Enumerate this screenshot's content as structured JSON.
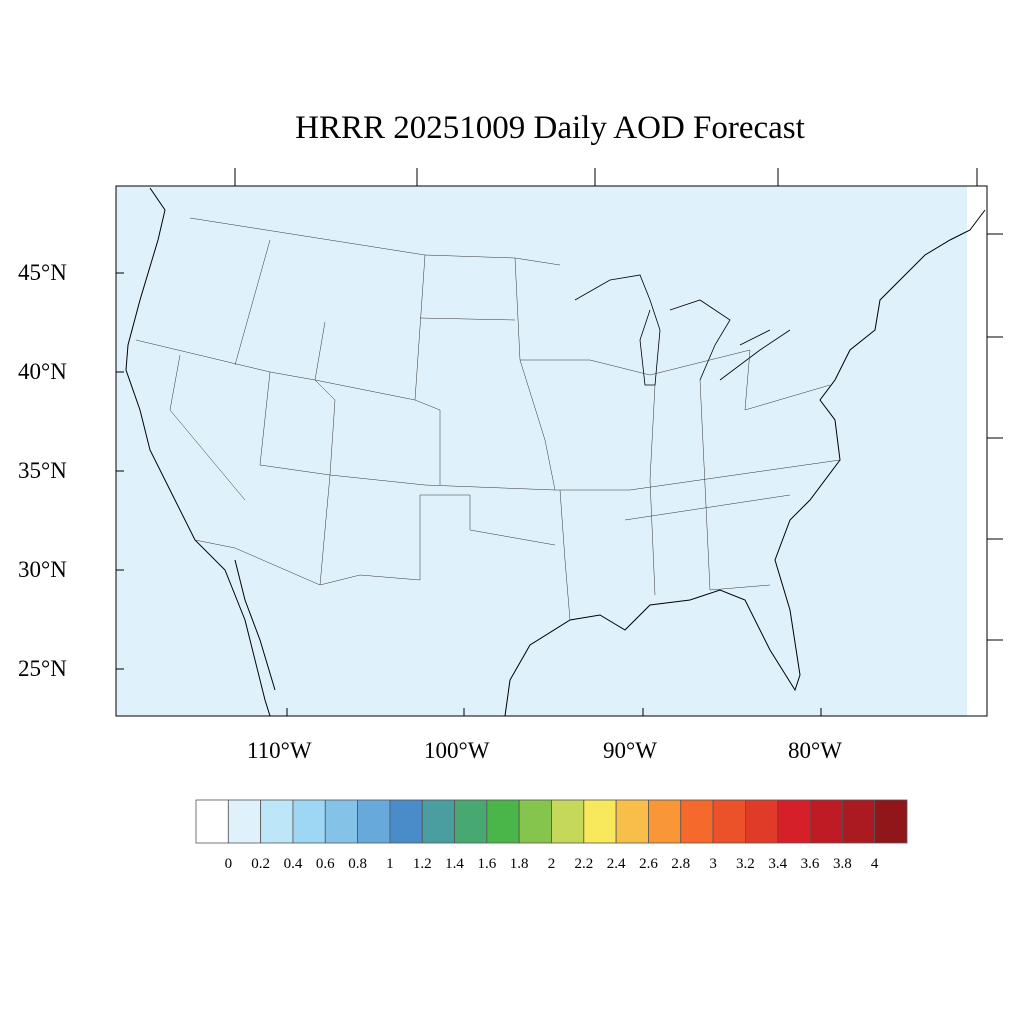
{
  "title": "HRRR 20251009 Daily AOD Forecast",
  "map": {
    "projection": "lambert-conformal",
    "fill_color": "#dff2fb",
    "lat_labels": [
      "45°N",
      "40°N",
      "35°N",
      "30°N",
      "25°N"
    ],
    "lon_labels": [
      "110°W",
      "100°W",
      "90°W",
      "80°W"
    ]
  },
  "colorbar": {
    "labels": [
      "0",
      "0.2",
      "0.4",
      "0.6",
      "0.8",
      "1",
      "1.2",
      "1.4",
      "1.6",
      "1.8",
      "2",
      "2.2",
      "2.4",
      "2.6",
      "2.8",
      "3",
      "3.2",
      "3.4",
      "3.6",
      "3.8",
      "4"
    ],
    "colors": [
      "#ffffff",
      "#dff2fb",
      "#bde6f8",
      "#9dd7f4",
      "#84c2e8",
      "#68a9db",
      "#4a8cc9",
      "#4a9ea0",
      "#48a872",
      "#4ab64a",
      "#85c54e",
      "#c6d85a",
      "#f8e85c",
      "#f9bd4a",
      "#f89638",
      "#f56a2c",
      "#eb522a",
      "#e03a28",
      "#d52029",
      "#bf1b24",
      "#aa1a20",
      "#911619"
    ]
  }
}
